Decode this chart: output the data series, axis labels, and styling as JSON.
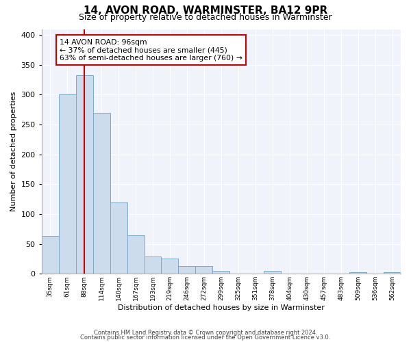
{
  "title": "14, AVON ROAD, WARMINSTER, BA12 9PR",
  "subtitle": "Size of property relative to detached houses in Warminster",
  "xlabel": "Distribution of detached houses by size in Warminster",
  "ylabel": "Number of detached properties",
  "bar_labels": [
    "35sqm",
    "61sqm",
    "88sqm",
    "114sqm",
    "140sqm",
    "167sqm",
    "193sqm",
    "219sqm",
    "246sqm",
    "272sqm",
    "299sqm",
    "325sqm",
    "351sqm",
    "378sqm",
    "404sqm",
    "430sqm",
    "457sqm",
    "483sqm",
    "509sqm",
    "536sqm",
    "562sqm"
  ],
  "bar_heights": [
    63,
    300,
    333,
    270,
    119,
    64,
    29,
    25,
    13,
    13,
    5,
    0,
    0,
    5,
    0,
    0,
    0,
    0,
    3,
    0,
    3
  ],
  "bar_color": "#ccdcec",
  "bar_edge_color": "#7aaaca",
  "vline_x_idx": 2,
  "vline_color": "#cc0000",
  "annotation_title": "14 AVON ROAD: 96sqm",
  "annotation_line1": "← 37% of detached houses are smaller (445)",
  "annotation_line2": "63% of semi-detached houses are larger (760) →",
  "annotation_box_color": "#ffffff",
  "annotation_box_edge": "#cc0000",
  "ylim": [
    0,
    410
  ],
  "yticks": [
    0,
    50,
    100,
    150,
    200,
    250,
    300,
    350,
    400
  ],
  "footer1": "Contains HM Land Registry data © Crown copyright and database right 2024.",
  "footer2": "Contains public sector information licensed under the Open Government Licence v3.0.",
  "bg_color": "#f0f4fa"
}
